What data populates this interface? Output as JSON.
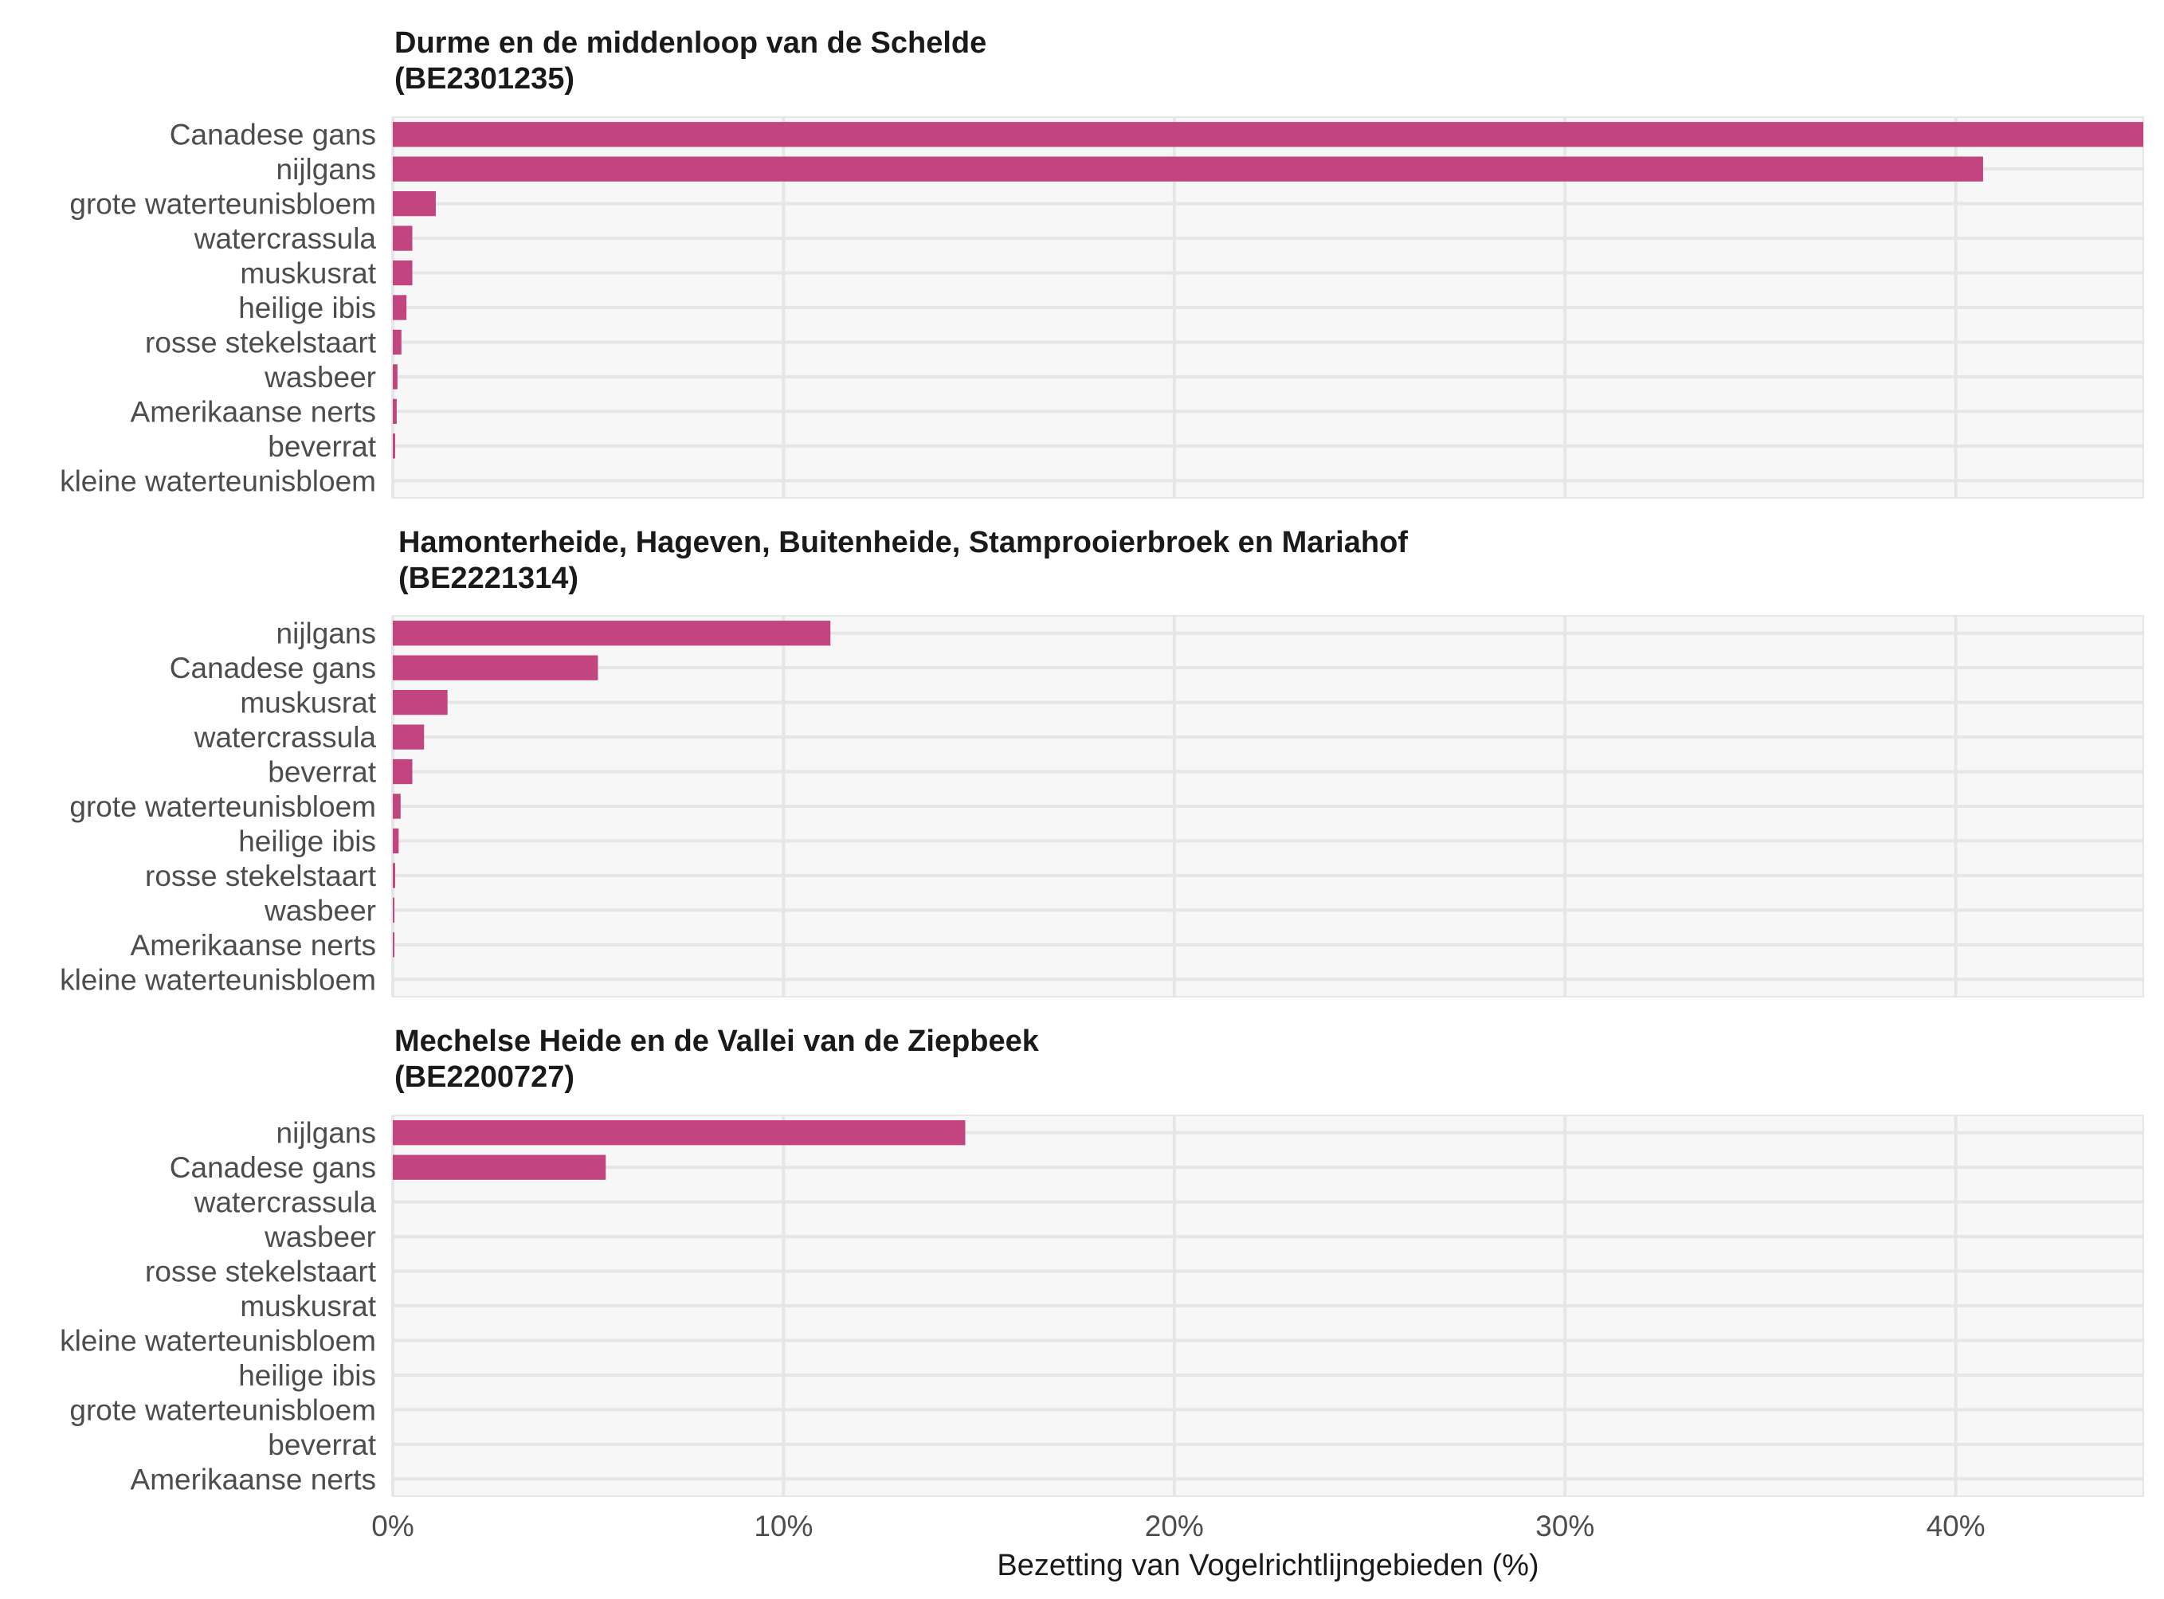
{
  "chart_data": {
    "type": "bar",
    "orientation": "horizontal",
    "xlabel": "Bezetting van Vogelrichtlijngebieden (%)",
    "xlim": [
      0,
      44.8
    ],
    "xticks": [
      0,
      10,
      20,
      30,
      40
    ],
    "xtick_labels": [
      "0%",
      "10%",
      "20%",
      "30%",
      "40%"
    ],
    "grid": true,
    "bar_color": "#c2457f",
    "panel_background": "#f7f7f7",
    "grid_color": "#e6e6e6",
    "panels": [
      {
        "title_line1": "Durme en de middenloop van de Schelde",
        "title_line2": "(BE2301235)",
        "categories": [
          "Canadese gans",
          "nijlgans",
          "grote waterteunisbloem",
          "watercrassula",
          "muskusrat",
          "heilige ibis",
          "rosse stekelstaart",
          "wasbeer",
          "Amerikaanse nerts",
          "beverrat",
          "kleine waterteunisbloem"
        ],
        "values": [
          44.8,
          40.7,
          1.1,
          0.5,
          0.5,
          0.35,
          0.22,
          0.12,
          0.1,
          0.06,
          0.0
        ]
      },
      {
        "title_line1": "Hamonterheide, Hageven, Buitenheide, Stamprooierbroek en Mariahof",
        "title_line2": "(BE2221314)",
        "categories": [
          "nijlgans",
          "Canadese gans",
          "muskusrat",
          "watercrassula",
          "beverrat",
          "grote waterteunisbloem",
          "heilige ibis",
          "rosse stekelstaart",
          "wasbeer",
          "Amerikaanse nerts",
          "kleine waterteunisbloem"
        ],
        "values": [
          11.2,
          5.25,
          1.4,
          0.8,
          0.5,
          0.2,
          0.15,
          0.06,
          0.04,
          0.04,
          0.0
        ]
      },
      {
        "title_line1": "Mechelse Heide en de Vallei van de Ziepbeek",
        "title_line2": "(BE2200727)",
        "categories": [
          "nijlgans",
          "Canadese gans",
          "watercrassula",
          "wasbeer",
          "rosse stekelstaart",
          "muskusrat",
          "kleine waterteunisbloem",
          "heilige ibis",
          "grote waterteunisbloem",
          "beverrat",
          "Amerikaanse nerts"
        ],
        "values": [
          14.65,
          5.45,
          0,
          0,
          0,
          0,
          0,
          0,
          0,
          0,
          0
        ]
      }
    ]
  }
}
